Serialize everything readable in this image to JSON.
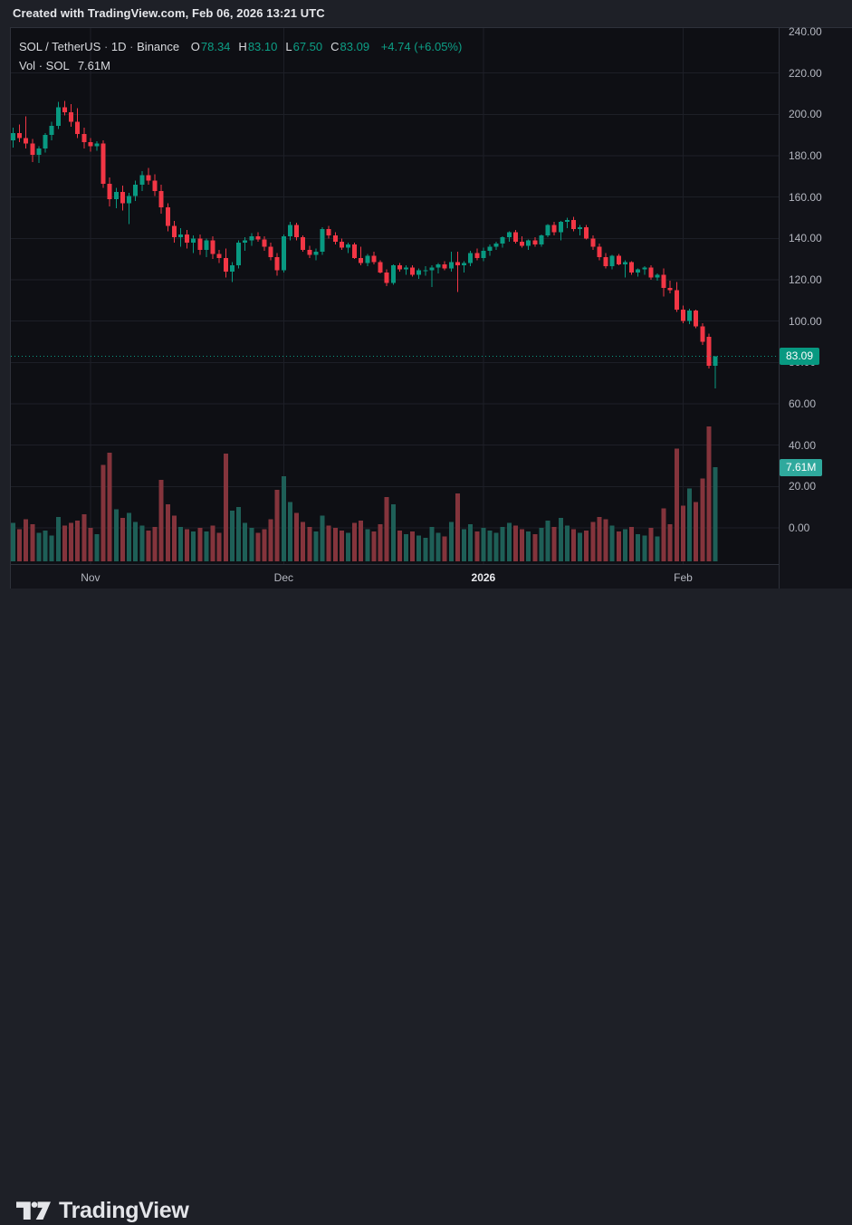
{
  "header": {
    "attribution": "Created with TradingView.com, Feb 06, 2026 13:21 UTC"
  },
  "legend": {
    "symbol": "SOL / TetherUS",
    "separator": "·",
    "interval": "1D",
    "exchange": "Binance",
    "ohlc": [
      {
        "label": "O",
        "value": "78.34"
      },
      {
        "label": "H",
        "value": "83.10"
      },
      {
        "label": "L",
        "value": "67.50"
      },
      {
        "label": "C",
        "value": "83.09"
      }
    ],
    "change": "+4.74 (+6.05%)",
    "volume_row": {
      "label": "Vol",
      "separator": "·",
      "symbol": "SOL",
      "value": "7.61M"
    }
  },
  "price_axis": {
    "tick_values": [
      240,
      220,
      200,
      180,
      160,
      140,
      120,
      100,
      80,
      60,
      40,
      20,
      0
    ],
    "price_badge": "83.09",
    "volume_badge": "7.61M"
  },
  "time_axis": {
    "labels": [
      {
        "text": "Nov",
        "index": 12,
        "bold": false
      },
      {
        "text": "Dec",
        "index": 42,
        "bold": false
      },
      {
        "text": "2026",
        "index": 73,
        "bold": true
      },
      {
        "text": "Feb",
        "index": 104,
        "bold": false
      }
    ]
  },
  "footer": {
    "brand": "TradingView"
  },
  "colors": {
    "up": "#089981",
    "down": "#f23645",
    "volume_up": "#1e5f57",
    "volume_down": "#84343c",
    "price_badge_bg": "#089981",
    "volume_badge_bg": "#2fa99d",
    "dotted_line": "#0a9a83",
    "grid": "#1d1f27"
  },
  "chart_data": {
    "type": "candlestick",
    "symbol": "SOL/USDT",
    "exchange": "Binance",
    "interval": "1D",
    "title": "SOL / TetherUS · 1D · Binance",
    "last_price": 83.09,
    "price_change": 4.74,
    "price_change_pct": 6.05,
    "last_volume_m": 7.61,
    "y_axis_range": [
      0,
      240
    ],
    "grid": true,
    "columns": [
      "date",
      "open",
      "high",
      "low",
      "close",
      "volume_millions"
    ],
    "candles": [
      [
        "2025-10-20",
        187.5,
        193.5,
        184.0,
        191.0,
        3.1
      ],
      [
        "2025-10-21",
        191.0,
        195.0,
        186.5,
        188.5,
        2.6
      ],
      [
        "2025-10-22",
        188.5,
        199.0,
        183.5,
        186.0,
        3.4
      ],
      [
        "2025-10-23",
        186.0,
        188.0,
        177.0,
        180.5,
        3.0
      ],
      [
        "2025-10-24",
        180.5,
        184.5,
        176.5,
        183.5,
        2.3
      ],
      [
        "2025-10-25",
        183.5,
        191.0,
        181.5,
        190.0,
        2.5
      ],
      [
        "2025-10-26",
        190.0,
        196.5,
        187.5,
        194.5,
        2.1
      ],
      [
        "2025-10-27",
        194.5,
        206.0,
        193.0,
        203.5,
        3.6
      ],
      [
        "2025-10-28",
        203.5,
        206.5,
        199.5,
        201.0,
        2.9
      ],
      [
        "2025-10-29",
        201.0,
        205.0,
        194.0,
        196.5,
        3.1
      ],
      [
        "2025-10-30",
        196.5,
        203.0,
        188.5,
        190.5,
        3.3
      ],
      [
        "2025-10-31",
        190.5,
        193.5,
        183.5,
        186.5,
        3.8
      ],
      [
        "2025-11-01",
        186.5,
        188.5,
        182.0,
        184.5,
        2.7
      ],
      [
        "2025-11-02",
        184.5,
        187.0,
        182.5,
        186.0,
        2.2
      ],
      [
        "2025-11-03",
        186.0,
        187.5,
        164.5,
        166.5,
        7.8
      ],
      [
        "2025-11-04",
        166.5,
        169.5,
        155.5,
        159.0,
        8.8
      ],
      [
        "2025-11-05",
        159.0,
        164.5,
        154.5,
        162.5,
        4.2
      ],
      [
        "2025-11-06",
        162.5,
        165.5,
        153.5,
        157.0,
        3.5
      ],
      [
        "2025-11-07",
        157.0,
        162.0,
        147.0,
        160.5,
        3.9
      ],
      [
        "2025-11-08",
        160.5,
        168.0,
        158.0,
        166.0,
        3.2
      ],
      [
        "2025-11-09",
        166.0,
        172.5,
        163.0,
        170.5,
        2.9
      ],
      [
        "2025-11-10",
        170.5,
        174.0,
        166.0,
        168.0,
        2.5
      ],
      [
        "2025-11-11",
        168.0,
        171.0,
        160.5,
        163.0,
        2.8
      ],
      [
        "2025-11-12",
        163.0,
        166.0,
        152.0,
        155.0,
        6.6
      ],
      [
        "2025-11-13",
        155.0,
        157.0,
        143.5,
        146.0,
        4.6
      ],
      [
        "2025-11-14",
        146.0,
        148.5,
        138.0,
        140.5,
        3.7
      ],
      [
        "2025-11-15",
        140.5,
        145.0,
        136.0,
        142.0,
        2.8
      ],
      [
        "2025-11-16",
        142.0,
        144.0,
        135.0,
        138.0,
        2.6
      ],
      [
        "2025-11-17",
        138.0,
        141.5,
        133.0,
        140.0,
        2.4
      ],
      [
        "2025-11-18",
        140.0,
        142.0,
        132.0,
        134.5,
        2.7
      ],
      [
        "2025-11-19",
        134.5,
        140.0,
        131.0,
        139.0,
        2.4
      ],
      [
        "2025-11-20",
        139.0,
        141.0,
        130.0,
        132.5,
        2.9
      ],
      [
        "2025-11-21",
        132.5,
        134.5,
        128.0,
        130.5,
        2.3
      ],
      [
        "2025-11-22",
        130.5,
        135.0,
        121.0,
        124.0,
        8.7
      ],
      [
        "2025-11-23",
        124.0,
        128.5,
        119.0,
        127.0,
        4.1
      ],
      [
        "2025-11-24",
        127.0,
        139.0,
        125.5,
        138.0,
        4.4
      ],
      [
        "2025-11-25",
        138.0,
        140.5,
        134.0,
        139.0,
        3.1
      ],
      [
        "2025-11-26",
        139.0,
        142.5,
        136.5,
        141.0,
        2.7
      ],
      [
        "2025-11-27",
        141.0,
        143.0,
        138.5,
        139.5,
        2.3
      ],
      [
        "2025-11-28",
        139.5,
        141.0,
        134.0,
        136.0,
        2.6
      ],
      [
        "2025-11-29",
        136.0,
        138.0,
        129.5,
        131.0,
        3.4
      ],
      [
        "2025-11-30",
        131.0,
        133.0,
        122.0,
        124.5,
        5.8
      ],
      [
        "2025-12-01",
        124.5,
        142.0,
        123.5,
        141.0,
        6.9
      ],
      [
        "2025-12-02",
        141.0,
        148.0,
        139.0,
        146.5,
        4.8
      ],
      [
        "2025-12-03",
        146.5,
        147.5,
        139.0,
        140.5,
        3.9
      ],
      [
        "2025-12-04",
        140.5,
        141.5,
        133.5,
        134.5,
        3.2
      ],
      [
        "2025-12-05",
        134.5,
        136.5,
        130.5,
        132.0,
        2.8
      ],
      [
        "2025-12-06",
        132.0,
        135.0,
        129.5,
        133.5,
        2.4
      ],
      [
        "2025-12-07",
        133.5,
        145.5,
        132.0,
        144.5,
        3.7
      ],
      [
        "2025-12-08",
        144.5,
        146.0,
        140.0,
        141.5,
        2.9
      ],
      [
        "2025-12-09",
        141.5,
        143.0,
        137.0,
        138.5,
        2.7
      ],
      [
        "2025-12-10",
        138.5,
        140.0,
        134.5,
        135.5,
        2.5
      ],
      [
        "2025-12-11",
        135.5,
        138.0,
        133.0,
        137.0,
        2.3
      ],
      [
        "2025-12-12",
        137.0,
        138.0,
        130.0,
        130.5,
        3.1
      ],
      [
        "2025-12-13",
        130.5,
        136.0,
        127.0,
        128.0,
        3.3
      ],
      [
        "2025-12-14",
        128.0,
        132.5,
        126.5,
        131.5,
        2.6
      ],
      [
        "2025-12-15",
        131.5,
        133.5,
        127.5,
        128.5,
        2.4
      ],
      [
        "2025-12-16",
        128.5,
        129.5,
        123.0,
        123.5,
        3.0
      ],
      [
        "2025-12-17",
        123.5,
        125.0,
        117.0,
        118.5,
        5.2
      ],
      [
        "2025-12-18",
        118.5,
        127.5,
        117.5,
        127.0,
        4.6
      ],
      [
        "2025-12-19",
        127.0,
        128.0,
        124.0,
        125.0,
        2.5
      ],
      [
        "2025-12-20",
        125.0,
        127.0,
        122.5,
        126.0,
        2.2
      ],
      [
        "2025-12-21",
        126.0,
        127.0,
        121.5,
        122.5,
        2.4
      ],
      [
        "2025-12-22",
        122.5,
        125.5,
        120.5,
        124.5,
        2.1
      ],
      [
        "2025-12-23",
        124.5,
        126.5,
        122.0,
        124.5,
        1.9
      ],
      [
        "2025-12-24",
        124.5,
        127.0,
        116.5,
        126.0,
        2.8
      ],
      [
        "2025-12-25",
        126.0,
        128.0,
        123.0,
        127.5,
        2.3
      ],
      [
        "2025-12-26",
        127.5,
        129.0,
        124.5,
        125.5,
        2.0
      ],
      [
        "2025-12-27",
        125.5,
        133.5,
        124.0,
        128.5,
        3.2
      ],
      [
        "2025-12-28",
        128.5,
        133.5,
        114.0,
        127.0,
        5.5
      ],
      [
        "2025-12-29",
        127.0,
        129.0,
        123.5,
        128.0,
        2.6
      ],
      [
        "2025-12-30",
        128.0,
        134.0,
        126.5,
        133.0,
        3.0
      ],
      [
        "2025-12-31",
        133.0,
        135.0,
        129.5,
        130.5,
        2.4
      ],
      [
        "2026-01-01",
        130.5,
        135.5,
        129.0,
        134.0,
        2.7
      ],
      [
        "2026-01-02",
        134.0,
        137.0,
        131.5,
        136.0,
        2.5
      ],
      [
        "2026-01-03",
        136.0,
        138.5,
        134.5,
        137.5,
        2.3
      ],
      [
        "2026-01-04",
        137.5,
        141.0,
        135.5,
        140.5,
        2.8
      ],
      [
        "2026-01-05",
        140.5,
        143.5,
        138.5,
        143.0,
        3.1
      ],
      [
        "2026-01-06",
        143.0,
        144.0,
        137.5,
        138.5,
        2.9
      ],
      [
        "2026-01-07",
        138.5,
        141.0,
        135.5,
        136.5,
        2.6
      ],
      [
        "2026-01-08",
        136.5,
        139.5,
        134.5,
        139.0,
        2.4
      ],
      [
        "2026-01-09",
        139.0,
        140.5,
        136.0,
        137.0,
        2.2
      ],
      [
        "2026-01-10",
        137.0,
        142.0,
        136.0,
        141.5,
        2.7
      ],
      [
        "2026-01-11",
        141.5,
        147.0,
        140.5,
        146.5,
        3.3
      ],
      [
        "2026-01-12",
        146.5,
        148.0,
        141.5,
        143.0,
        2.8
      ],
      [
        "2026-01-13",
        143.0,
        148.5,
        139.0,
        148.0,
        3.5
      ],
      [
        "2026-01-14",
        148.0,
        150.0,
        145.0,
        149.0,
        2.9
      ],
      [
        "2026-01-15",
        149.0,
        150.5,
        143.5,
        144.5,
        2.6
      ],
      [
        "2026-01-16",
        144.5,
        146.5,
        141.5,
        145.5,
        2.3
      ],
      [
        "2026-01-17",
        145.5,
        146.5,
        139.5,
        140.0,
        2.5
      ],
      [
        "2026-01-18",
        140.0,
        141.5,
        134.5,
        136.0,
        3.2
      ],
      [
        "2026-01-19",
        136.0,
        137.5,
        129.5,
        131.0,
        3.6
      ],
      [
        "2026-01-20",
        131.0,
        133.0,
        125.5,
        126.5,
        3.4
      ],
      [
        "2026-01-21",
        126.5,
        132.0,
        125.0,
        131.5,
        2.9
      ],
      [
        "2026-01-22",
        131.5,
        132.5,
        127.0,
        127.5,
        2.4
      ],
      [
        "2026-01-23",
        127.5,
        129.5,
        121.0,
        128.5,
        2.6
      ],
      [
        "2026-01-24",
        128.5,
        129.0,
        122.5,
        123.5,
        2.8
      ],
      [
        "2026-01-25",
        123.5,
        125.5,
        121.5,
        125.0,
        2.2
      ],
      [
        "2026-01-26",
        125.0,
        126.5,
        122.5,
        126.0,
        2.1
      ],
      [
        "2026-01-27",
        126.0,
        127.0,
        120.0,
        121.0,
        2.7
      ],
      [
        "2026-01-28",
        121.0,
        123.0,
        119.5,
        122.5,
        2.0
      ],
      [
        "2026-01-29",
        122.5,
        125.5,
        112.0,
        116.0,
        4.3
      ],
      [
        "2026-01-30",
        116.0,
        119.5,
        113.5,
        115.0,
        3.0
      ],
      [
        "2026-01-31",
        115.0,
        119.0,
        104.5,
        105.5,
        9.1
      ],
      [
        "2026-02-01",
        105.5,
        107.5,
        99.0,
        100.0,
        4.5
      ],
      [
        "2026-02-02",
        100.0,
        106.0,
        98.5,
        105.0,
        5.9
      ],
      [
        "2026-02-03",
        105.0,
        105.5,
        96.5,
        97.5,
        4.8
      ],
      [
        "2026-02-04",
        97.5,
        99.0,
        88.5,
        90.0,
        6.7
      ],
      [
        "2026-02-05",
        92.5,
        94.0,
        77.0,
        78.3,
        10.9
      ],
      [
        "2026-02-06",
        78.34,
        83.1,
        67.5,
        83.09,
        7.61
      ]
    ]
  }
}
